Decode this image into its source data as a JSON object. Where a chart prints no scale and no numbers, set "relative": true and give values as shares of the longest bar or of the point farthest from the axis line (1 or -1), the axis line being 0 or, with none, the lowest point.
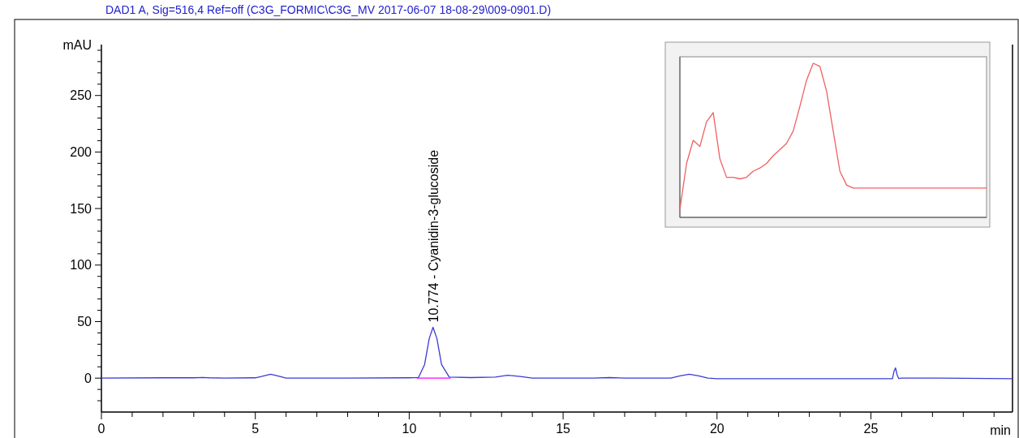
{
  "chart_data": [
    {
      "type": "line",
      "title": "DAD1 A, Sig=516,4 Ref=off (C3G_FORMIC\\C3G_MV 2017-06-07 18-08-29\\009-0901.D)",
      "xlabel": "min",
      "ylabel": "mAU",
      "xlim": [
        0,
        29.6
      ],
      "ylim": [
        -30,
        295
      ],
      "xticks": [
        0,
        {
          "value": 1,
          "label": null
        },
        {
          "value": 2,
          "label": null
        },
        {
          "value": 3,
          "label": null
        },
        {
          "value": 4,
          "label": null
        },
        5,
        {
          "value": 6,
          "label": null
        },
        {
          "value": 7,
          "label": null
        },
        {
          "value": 8,
          "label": null
        },
        {
          "value": 9,
          "label": null
        },
        10,
        {
          "value": 11,
          "label": null
        },
        {
          "value": 12,
          "label": null
        },
        {
          "value": 13,
          "label": null
        },
        {
          "value": 14,
          "label": null
        },
        15,
        {
          "value": 16,
          "label": null
        },
        {
          "value": 17,
          "label": null
        },
        {
          "value": 18,
          "label": null
        },
        {
          "value": 19,
          "label": null
        },
        20,
        {
          "value": 21,
          "label": null
        },
        {
          "value": 22,
          "label": null
        },
        {
          "value": 23,
          "label": null
        },
        {
          "value": 24,
          "label": null
        },
        25,
        {
          "value": 26,
          "label": null
        },
        {
          "value": 27,
          "label": null
        },
        {
          "value": 28,
          "label": null
        },
        {
          "value": 29,
          "label": null
        }
      ],
      "yticks": [
        {
          "value": -20,
          "label": null
        },
        {
          "value": -10,
          "label": null
        },
        0,
        {
          "value": 10,
          "label": null
        },
        {
          "value": 20,
          "label": null
        },
        {
          "value": 30,
          "label": null
        },
        {
          "value": 40,
          "label": null
        },
        50,
        {
          "value": 60,
          "label": null
        },
        {
          "value": 70,
          "label": null
        },
        {
          "value": 80,
          "label": null
        },
        {
          "value": 90,
          "label": null
        },
        100,
        {
          "value": 110,
          "label": null
        },
        {
          "value": 120,
          "label": null
        },
        {
          "value": 130,
          "label": null
        },
        {
          "value": 140,
          "label": null
        },
        150,
        {
          "value": 160,
          "label": null
        },
        {
          "value": 170,
          "label": null
        },
        {
          "value": 180,
          "label": null
        },
        {
          "value": 190,
          "label": null
        },
        200,
        {
          "value": 210,
          "label": null
        },
        {
          "value": 220,
          "label": null
        },
        {
          "value": 230,
          "label": null
        },
        {
          "value": 240,
          "label": null
        },
        250,
        {
          "value": 260,
          "label": null
        },
        {
          "value": 270,
          "label": null
        },
        {
          "value": 280,
          "label": null
        },
        {
          "value": 290,
          "label": null
        }
      ],
      "series": [
        {
          "color": "#3b3bd6",
          "x": [
            0,
            2,
            3,
            3.3,
            3.5,
            4,
            5,
            5.2,
            5.5,
            5.8,
            6,
            8,
            10,
            10.3,
            10.5,
            10.65,
            10.774,
            10.9,
            11.05,
            11.3,
            12,
            12.8,
            13.2,
            13.6,
            14,
            16,
            16.5,
            17,
            18.5,
            18.8,
            19.1,
            19.4,
            19.7,
            20,
            22,
            25.7,
            25.75,
            25.8,
            25.85,
            25.9,
            26,
            27.2,
            29.6
          ],
          "values": [
            0,
            0.3,
            0.3,
            0.6,
            0.3,
            0,
            0.3,
            1.5,
            3.5,
            1.5,
            0,
            0,
            0.3,
            0.5,
            12,
            35,
            45,
            35,
            12,
            1,
            0.5,
            1,
            2.5,
            1.5,
            0,
            0,
            0.5,
            0,
            0,
            2,
            3.5,
            2,
            0,
            -0.5,
            -0.5,
            -0.5,
            6,
            9,
            3,
            -0.3,
            0,
            0,
            -0.5
          ]
        },
        {
          "color": "#ff00ff",
          "x": [
            10.25,
            11.35
          ],
          "values": [
            0,
            0
          ]
        }
      ],
      "annotations": [
        {
          "text": "10.774 -  Cyanidin-3-glucoside",
          "x": 10.774,
          "y": 45
        }
      ]
    },
    {
      "type": "line",
      "relative": true,
      "categories": [
        null,
        null,
        null,
        null,
        null,
        null,
        null,
        null,
        null,
        null,
        null,
        null,
        null,
        null,
        null,
        null,
        null,
        null,
        null,
        null,
        null,
        null,
        null,
        null,
        null,
        null,
        null,
        null,
        null,
        null,
        null,
        null,
        null,
        null,
        null,
        null,
        null,
        null,
        null,
        null,
        null,
        null,
        null,
        null,
        null,
        null,
        null
      ],
      "series": [
        {
          "color": "#f06060",
          "values": [
            0.05,
            0.35,
            0.5,
            0.46,
            0.62,
            0.68,
            0.38,
            0.26,
            0.26,
            0.25,
            0.26,
            0.3,
            0.32,
            0.35,
            0.4,
            0.44,
            0.48,
            0.56,
            0.72,
            0.89,
            1,
            0.98,
            0.82,
            0.56,
            0.3,
            0.21,
            0.19,
            0.19,
            0.19,
            0.19,
            0.19,
            0.19,
            0.19,
            0.19,
            0.19,
            0.19,
            0.19,
            0.19,
            0.19,
            0.19,
            0.19,
            0.19,
            0.19,
            0.19,
            0.19,
            0.19,
            0.19
          ]
        }
      ]
    }
  ]
}
